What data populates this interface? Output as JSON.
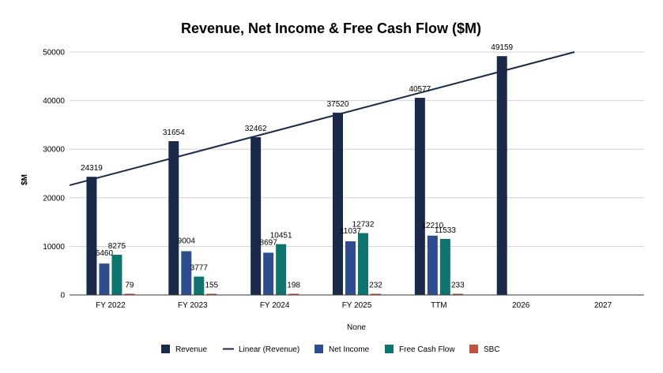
{
  "chart_data": {
    "type": "bar",
    "title": "Revenue, Net Income & Free Cash Flow  ($M)",
    "xlabel": "None",
    "ylabel": "$M",
    "categories": [
      "FY 2022",
      "FY 2023",
      "FY 2024",
      "FY 2025",
      "TTM",
      "2026",
      "2027"
    ],
    "ylim": [
      0,
      50000
    ],
    "yticks": [
      "0",
      "10000",
      "20000",
      "30000",
      "40000",
      "50000"
    ],
    "grid": true,
    "legend_position": "bottom",
    "series": [
      {
        "name": "Revenue",
        "color": "#1b2a4a",
        "values": [
          24319,
          31654,
          32462,
          37520,
          40577,
          49159,
          null
        ]
      },
      {
        "name": "Net Income",
        "color": "#2e4d8f",
        "values": [
          6460,
          9004,
          8697,
          11037,
          12210,
          null,
          null
        ]
      },
      {
        "name": "Free Cash Flow",
        "color": "#0e7470",
        "values": [
          8275,
          3777,
          10451,
          12732,
          11533,
          null,
          null
        ]
      },
      {
        "name": "SBC",
        "color": "#c0533e",
        "values": [
          79,
          155,
          198,
          232,
          233,
          null,
          null
        ]
      }
    ],
    "trendline": {
      "name": "Linear (Revenue)",
      "color": "#1b2a4a",
      "of_series": "Revenue"
    }
  }
}
